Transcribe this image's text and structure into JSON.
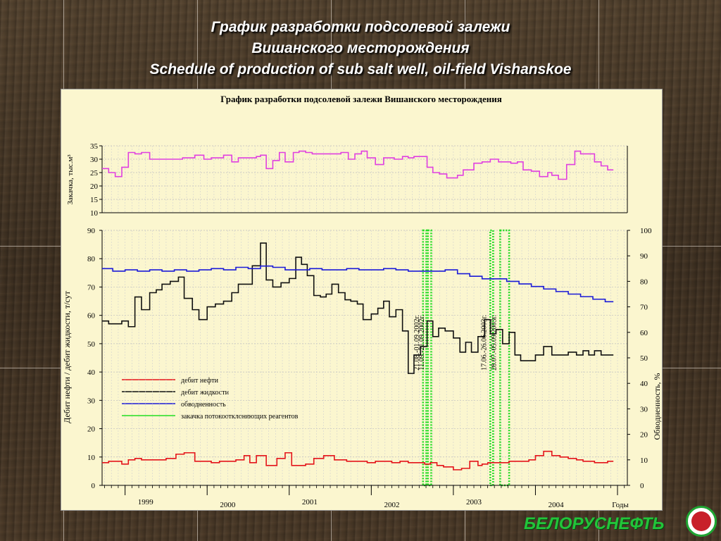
{
  "slide": {
    "title_line1": "График разработки подсолевой залежи",
    "title_line2": "Вишанского месторождения",
    "title_line3": "Schedule of production of sub salt well, oil-field Vishanskoe"
  },
  "logo": {
    "text": "БЕЛОРУСНЕФТЬ"
  },
  "colors": {
    "oil": "#e4141a",
    "liquid": "#101010",
    "watercut": "#1a1ad8",
    "injection_series": "#e040e0",
    "reagent": "#22dd22",
    "panel_bg": "#fbf6cf"
  },
  "chart_data": [
    {
      "type": "line",
      "title": "График разработки подсолевой залежи Вишанского месторождения",
      "ylabel": "Закачка, тыс.м³",
      "ylim": [
        10,
        35
      ],
      "yticks": [
        10,
        15,
        20,
        25,
        30,
        35
      ],
      "xlim": [
        1998.72,
        2005.12
      ],
      "grid": true,
      "series": [
        {
          "key": "injection",
          "step": true,
          "x": [
            1998.72,
            1998.8,
            1998.88,
            1998.96,
            1999.04,
            1999.12,
            1999.2,
            1999.3,
            1999.45,
            1999.55,
            1999.7,
            1999.85,
            1999.96,
            2000.05,
            2000.2,
            2000.3,
            2000.38,
            2000.5,
            2000.6,
            2000.65,
            2000.72,
            2000.8,
            2000.88,
            2000.95,
            2001.05,
            2001.12,
            2001.2,
            2001.28,
            2001.4,
            2001.55,
            2001.63,
            2001.72,
            2001.8,
            2001.88,
            2001.95,
            2002.05,
            2002.15,
            2002.28,
            2002.38,
            2002.45,
            2002.52,
            2002.6,
            2002.68,
            2002.75,
            2002.83,
            2002.92,
            2003.05,
            2003.12,
            2003.25,
            2003.35,
            2003.45,
            2003.55,
            2003.62,
            2003.7,
            2003.78,
            2003.85,
            2003.95,
            2004.05,
            2004.15,
            2004.2,
            2004.28,
            2004.38,
            2004.48,
            2004.55,
            2004.63,
            2004.72,
            2004.8,
            2004.88
          ],
          "y": [
            26.5,
            25,
            23.5,
            27,
            32.5,
            32,
            32.5,
            30,
            30,
            30,
            30.5,
            31.5,
            30,
            30.5,
            31.5,
            29,
            30.5,
            30.5,
            31,
            31.5,
            26.5,
            29.5,
            32.5,
            29,
            32.5,
            33,
            32.5,
            32,
            32,
            32,
            32.5,
            30,
            32,
            33,
            30.5,
            28,
            30.5,
            30,
            31,
            30.5,
            31,
            31,
            27,
            25,
            24.5,
            23,
            24,
            26,
            28.5,
            29,
            30,
            29,
            29,
            28.5,
            29,
            26,
            25.5,
            23.5,
            25,
            24,
            22.5,
            28,
            33,
            32,
            32,
            29,
            27.5,
            26
          ]
        }
      ]
    },
    {
      "type": "line",
      "ylabel": "Дебит нефти / дебит жидкости, т/сут",
      "ylabel_right": "Обводненность, %",
      "xlabel": "Годы",
      "ylim": [
        0,
        90
      ],
      "yticks": [
        0,
        10,
        20,
        30,
        40,
        50,
        60,
        70,
        80,
        90
      ],
      "ylim_right": [
        0,
        100
      ],
      "yticks_right": [
        0,
        10,
        20,
        30,
        40,
        50,
        60,
        70,
        80,
        90,
        100
      ],
      "xlim": [
        1998.72,
        2005.12
      ],
      "x_tick_labels": [
        "1999",
        "2000",
        "2001",
        "2002",
        "2003",
        "2004"
      ],
      "x_tick_label_positions": [
        1999.25,
        2000.25,
        2001.25,
        2002.25,
        2003.25,
        2004.25
      ],
      "grid": true,
      "legend_position": "middle-left",
      "series": [
        {
          "key": "oil",
          "name": "дебит нефти",
          "step": true,
          "x": [
            1998.72,
            1998.8,
            1998.88,
            1998.96,
            1999.04,
            1999.12,
            1999.2,
            1999.3,
            1999.42,
            1999.5,
            1999.62,
            1999.72,
            1999.85,
            1999.96,
            2000.05,
            2000.15,
            2000.2,
            2000.28,
            2000.35,
            2000.45,
            2000.52,
            2000.6,
            2000.72,
            2000.85,
            2000.95,
            2001.03,
            2001.12,
            2001.2,
            2001.3,
            2001.42,
            2001.55,
            2001.7,
            2001.85,
            2001.95,
            2002.05,
            2002.15,
            2002.25,
            2002.35,
            2002.45,
            2002.55,
            2002.65,
            2002.72,
            2002.8,
            2002.88,
            2003.0,
            2003.1,
            2003.2,
            2003.3,
            2003.35,
            2003.42,
            2003.5,
            2003.58,
            2003.68,
            2003.8,
            2003.92,
            2004.0,
            2004.1,
            2004.2,
            2004.3,
            2004.4,
            2004.5,
            2004.58,
            2004.65,
            2004.72,
            2004.8,
            2004.88
          ],
          "y": [
            8,
            8.5,
            8.5,
            7.5,
            9,
            9.5,
            9,
            9,
            9,
            9.5,
            11,
            11.5,
            8.5,
            8.5,
            8,
            8.5,
            8.5,
            8.5,
            9,
            10.5,
            8,
            10.5,
            7,
            9.5,
            11.5,
            7,
            7,
            7.5,
            9.5,
            10.5,
            9,
            8.5,
            8.5,
            8,
            8.5,
            8.5,
            8,
            8.5,
            8,
            8,
            7.5,
            8,
            7,
            6.5,
            5.5,
            6,
            8.5,
            7,
            7.5,
            8,
            8,
            8,
            8.5,
            8.5,
            9,
            10.5,
            12,
            10.5,
            10,
            9.5,
            9,
            8.5,
            8.5,
            8,
            8,
            8.5
          ]
        },
        {
          "key": "liquid",
          "name": "дебит жидкости",
          "step": true,
          "x": [
            1998.72,
            1998.8,
            1998.88,
            1998.96,
            1999.04,
            1999.12,
            1999.2,
            1999.3,
            1999.38,
            1999.45,
            1999.55,
            1999.65,
            1999.72,
            1999.82,
            1999.9,
            2000.0,
            2000.1,
            2000.2,
            2000.3,
            2000.38,
            2000.48,
            2000.55,
            2000.65,
            2000.72,
            2000.8,
            2000.9,
            2001.0,
            2001.08,
            2001.15,
            2001.22,
            2001.3,
            2001.38,
            2001.45,
            2001.52,
            2001.6,
            2001.68,
            2001.75,
            2001.83,
            2001.9,
            2002.0,
            2002.08,
            2002.15,
            2002.22,
            2002.3,
            2002.38,
            2002.45,
            2002.52,
            2002.6,
            2002.68,
            2002.75,
            2002.82,
            2002.9,
            2003.0,
            2003.08,
            2003.15,
            2003.22,
            2003.3,
            2003.38,
            2003.45,
            2003.52,
            2003.6,
            2003.68,
            2003.75,
            2003.82,
            2003.9,
            2004.0,
            2004.1,
            2004.2,
            2004.3,
            2004.4,
            2004.5,
            2004.58,
            2004.65,
            2004.72,
            2004.8
          ],
          "y": [
            58,
            57,
            57,
            58,
            56,
            66.5,
            62,
            68,
            69,
            71,
            72,
            73.5,
            66,
            62,
            58.5,
            63,
            64,
            65,
            68,
            71,
            71,
            77.5,
            85.5,
            72.5,
            70,
            71.5,
            73,
            80.5,
            78,
            74,
            67,
            66.5,
            67.5,
            71,
            68,
            65.5,
            65,
            64,
            58.5,
            60.5,
            62.5,
            65,
            59.5,
            62,
            54.5,
            39.5,
            46,
            49,
            58,
            52.5,
            55.5,
            54.5,
            52,
            47,
            50.5,
            47,
            52.5,
            58.5,
            53.5,
            55,
            50,
            54,
            46,
            44,
            44,
            46,
            49,
            46,
            46,
            47,
            46,
            47.5,
            46,
            47.5,
            46
          ]
        },
        {
          "key": "watercut",
          "name": "обводненность",
          "axis": "right",
          "step": true,
          "x": [
            1998.72,
            1998.85,
            1999.0,
            1999.15,
            1999.3,
            1999.45,
            1999.6,
            1999.75,
            1999.9,
            2000.05,
            2000.2,
            2000.35,
            2000.5,
            2000.65,
            2000.8,
            2000.95,
            2001.1,
            2001.25,
            2001.4,
            2001.55,
            2001.7,
            2001.85,
            2002.0,
            2002.15,
            2002.3,
            2002.45,
            2002.6,
            2002.75,
            2002.9,
            2003.05,
            2003.2,
            2003.35,
            2003.5,
            2003.65,
            2003.8,
            2003.95,
            2004.1,
            2004.25,
            2004.4,
            2004.55,
            2004.7,
            2004.85
          ],
          "y": [
            85,
            84,
            84.5,
            84,
            84.5,
            84,
            84.5,
            84,
            84.5,
            85,
            84.5,
            85.5,
            85,
            86,
            85.5,
            84.5,
            84.5,
            85,
            84.5,
            84.5,
            85,
            84.5,
            84.5,
            85,
            84.5,
            84,
            84,
            84,
            84.5,
            83,
            82,
            81,
            81,
            80,
            79,
            78,
            77,
            76,
            75,
            74,
            73,
            72
          ]
        }
      ],
      "legend_extra": "закачка потокоотклоняющих реагентов",
      "annotations": [
        {
          "label": "21.08.-01.09.2002г.",
          "from": 2002.63,
          "to": 2002.67
        },
        {
          "label": "11.09.-21.09.2002г.",
          "from": 2002.69,
          "to": 2002.73
        },
        {
          "label": "17.06.-26.06.2003г.",
          "from": 2003.45,
          "to": 2003.48
        },
        {
          "label": "28.07.-05.09.2003г.",
          "from": 2003.57,
          "to": 2003.68
        }
      ]
    }
  ]
}
